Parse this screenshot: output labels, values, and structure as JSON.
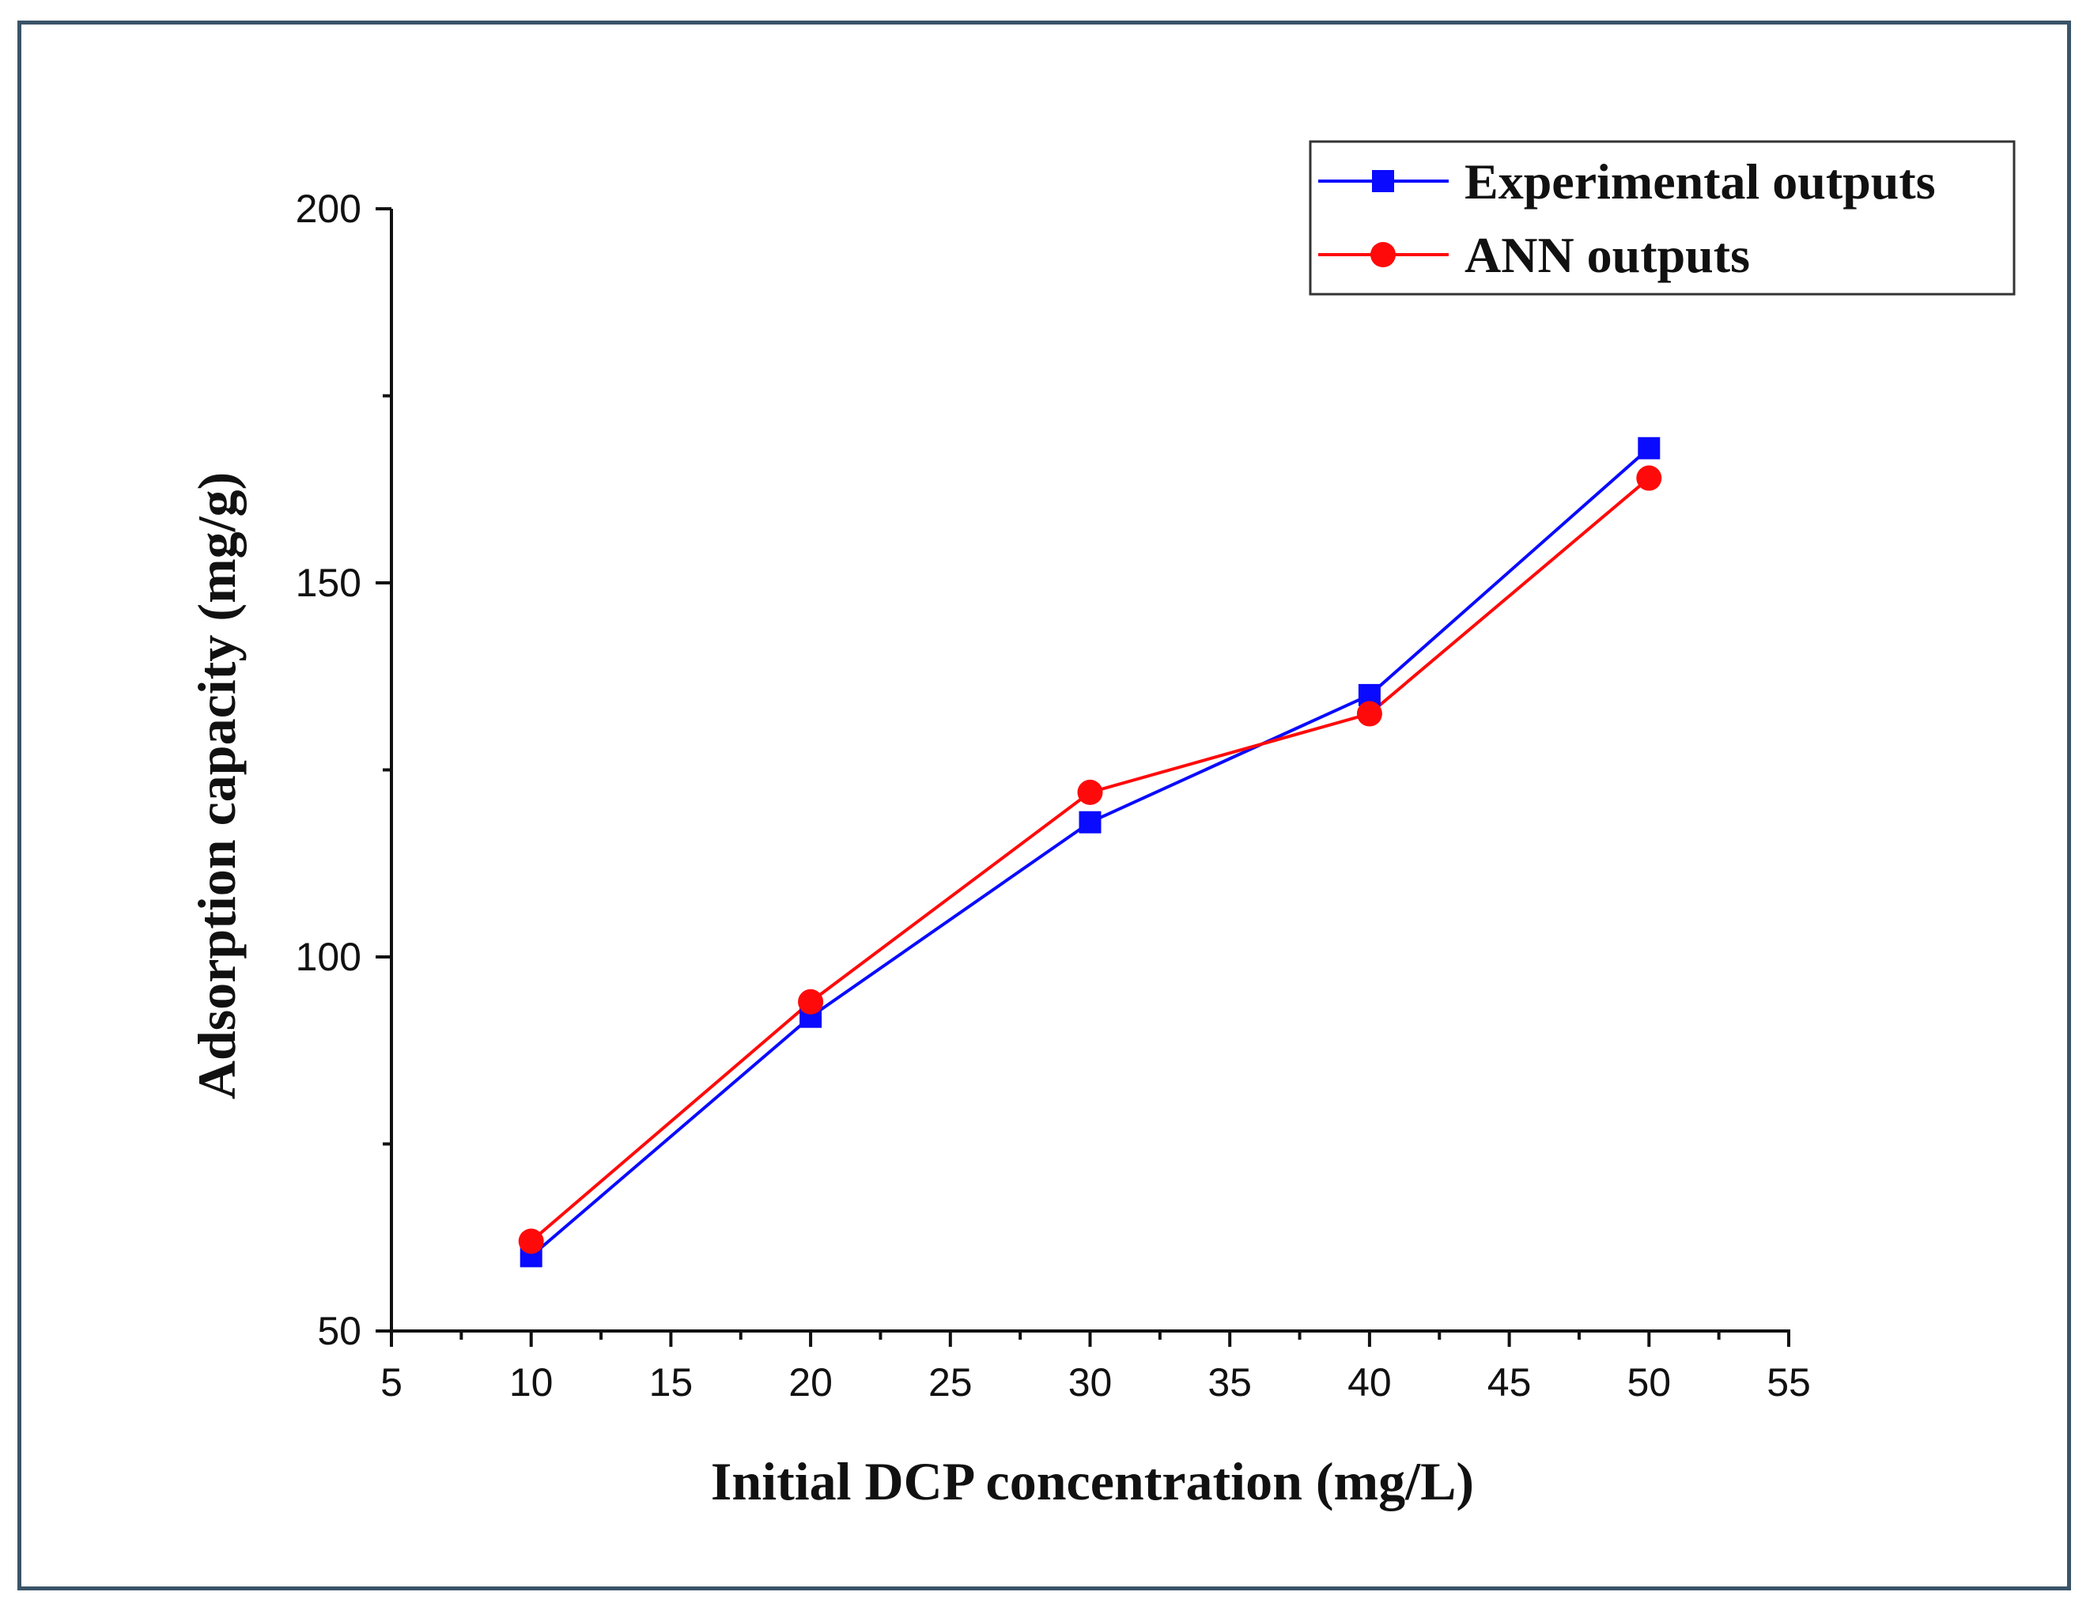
{
  "chart_data": {
    "type": "line",
    "title": "",
    "xlabel": "Initial DCP concentration (mg/L)",
    "ylabel": "Adsorption capacity (mg/g)",
    "xlim": [
      5,
      55
    ],
    "ylim": [
      50,
      200
    ],
    "x_ticks": [
      5,
      10,
      15,
      20,
      25,
      30,
      35,
      40,
      45,
      50,
      55
    ],
    "y_ticks": [
      50,
      100,
      150,
      200
    ],
    "x_minor_step": 2.5,
    "y_minor_step": 25,
    "grid": false,
    "legend_position": "top-right",
    "x": [
      10,
      20,
      30,
      40,
      50
    ],
    "series": [
      {
        "name": "Experimental outputs",
        "marker": "square",
        "color": "#0a0aff",
        "values": [
          60,
          92,
          118,
          135,
          168
        ]
      },
      {
        "name": "ANN outputs",
        "marker": "circle",
        "color": "#ff0a0a",
        "values": [
          62,
          94,
          122,
          132.5,
          164
        ]
      }
    ]
  },
  "colors": {
    "axis": "#111111",
    "frame_border": "#3a5468",
    "legend_border": "#333333"
  }
}
